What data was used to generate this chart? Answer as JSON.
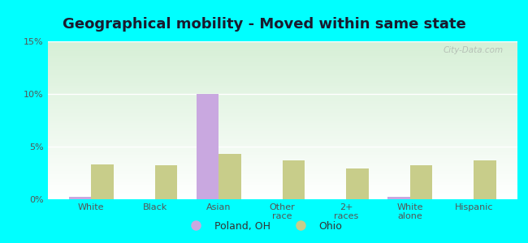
{
  "title": "Geographical mobility - Moved within same state",
  "categories": [
    "White",
    "Black",
    "Asian",
    "Other\nrace",
    "2+\nraces",
    "White\nalone",
    "Hispanic"
  ],
  "poland_values": [
    0.2,
    0.0,
    10.0,
    0.0,
    0.0,
    0.2,
    0.0
  ],
  "ohio_values": [
    3.3,
    3.2,
    4.3,
    3.7,
    2.9,
    3.2,
    3.7
  ],
  "poland_color": "#c9a8e0",
  "ohio_color": "#c8cd8a",
  "poland_label": "Poland, OH",
  "ohio_label": "Ohio",
  "ylim": [
    0,
    15
  ],
  "yticks": [
    0,
    5,
    10,
    15
  ],
  "ytick_labels": [
    "0%",
    "5%",
    "10%",
    "15%"
  ],
  "bg_color": "#00ffff",
  "plot_bg_top": "#ffffff",
  "plot_bg_bottom": "#d6efd6",
  "title_fontsize": 13,
  "bar_width": 0.35,
  "title_color": "#1a1a2e",
  "tick_color": "#555555",
  "watermark": "City-Data.com"
}
